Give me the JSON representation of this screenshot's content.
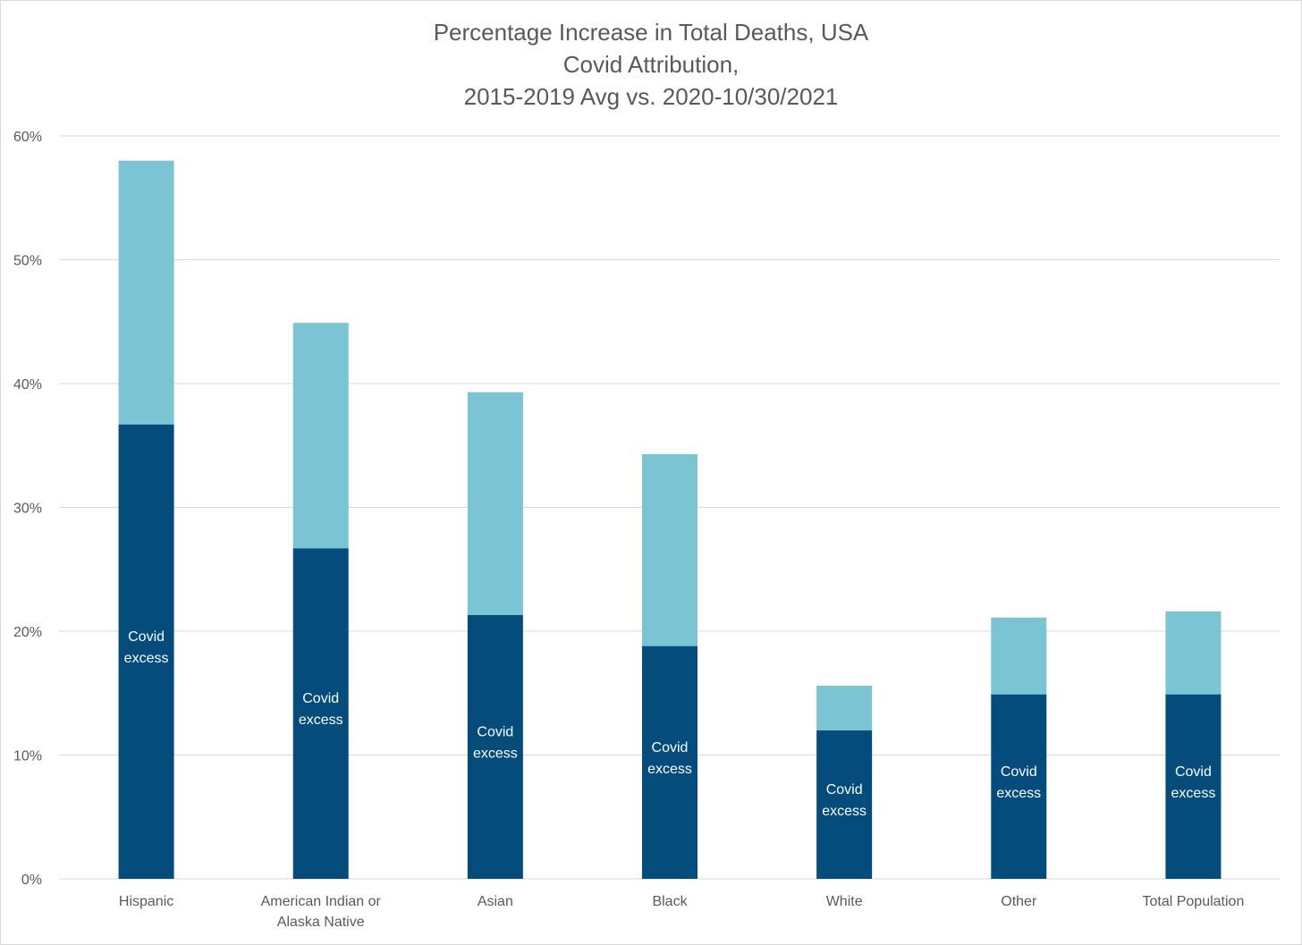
{
  "chart_data": {
    "type": "bar",
    "stacked": true,
    "title": [
      "Percentage Increase in Total Deaths, USA",
      "Covid Attribution,",
      "2015-2019 Avg vs. 2020-10/30/2021"
    ],
    "ylim": [
      0,
      60
    ],
    "yticks": [
      "0%",
      "10%",
      "20%",
      "30%",
      "40%",
      "50%",
      "60%"
    ],
    "grid": true,
    "categories": [
      [
        "Hispanic"
      ],
      [
        "American Indian or",
        "Alaska Native"
      ],
      [
        "Asian"
      ],
      [
        "Black"
      ],
      [
        "White"
      ],
      [
        "Other"
      ],
      [
        "Total Population"
      ]
    ],
    "series": [
      {
        "color": "#034c7c",
        "values": [
          36.7,
          26.7,
          21.3,
          18.8,
          12.0,
          14.9,
          14.9
        ],
        "label": [
          "Covid",
          "excess"
        ]
      },
      {
        "color": "#7ac4d3",
        "values": [
          21.3,
          18.2,
          18.0,
          15.5,
          3.6,
          6.2,
          6.7
        ]
      }
    ]
  }
}
